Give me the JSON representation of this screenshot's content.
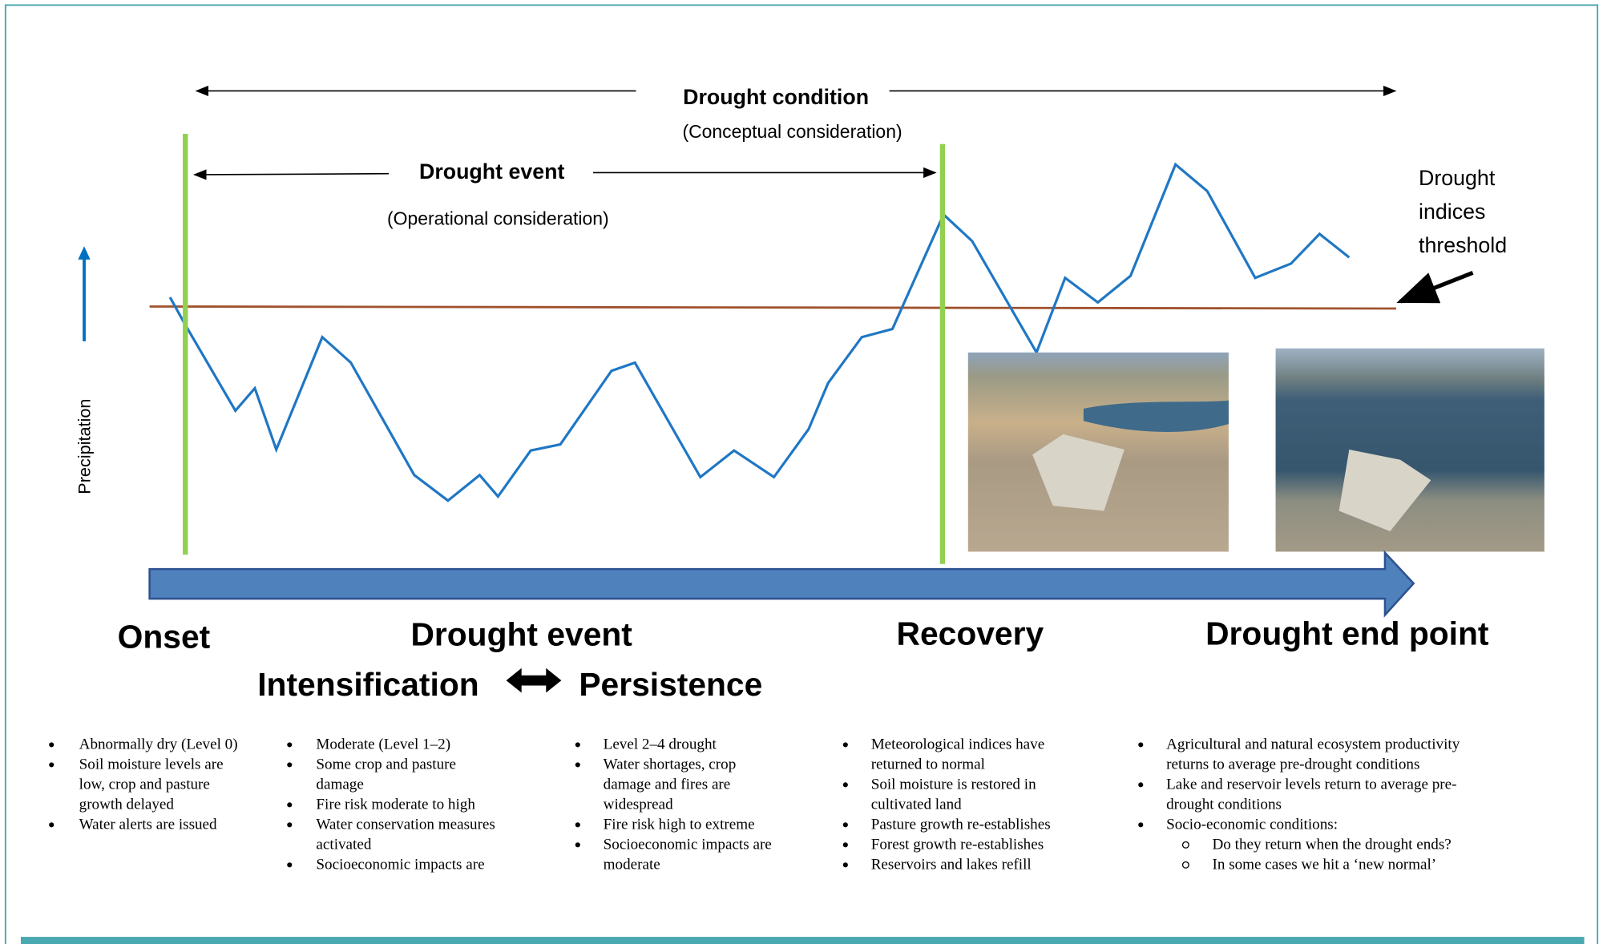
{
  "header": {
    "condition": {
      "title": "Drought condition",
      "subtitle": "(Conceptual consideration)"
    },
    "event": {
      "title": "Drought event",
      "subtitle": "(Operational consideration)"
    }
  },
  "threshold_label": [
    "Drought",
    "indices",
    "threshold"
  ],
  "y_axis_label": "Precipitation",
  "phases": {
    "onset": "Onset",
    "event": "Drought event",
    "recovery": "Recovery",
    "end": "Drought end point",
    "intensification": "Intensification",
    "persistence": "Persistence"
  },
  "columns": [
    {
      "items": [
        [
          "Abnormally dry (Level 0)"
        ],
        [
          "Soil moisture levels are",
          "low, crop and pasture",
          "growth delayed"
        ],
        [
          "Water alerts are issued"
        ]
      ]
    },
    {
      "items": [
        [
          "Moderate (Level 1–2)"
        ],
        [
          "Some crop and pasture",
          "damage"
        ],
        [
          "Fire risk moderate to high"
        ],
        [
          "Water conservation measures",
          "activated"
        ],
        [
          "Socioeconomic impacts are"
        ]
      ]
    },
    {
      "items": [
        [
          "Level 2–4 drought"
        ],
        [
          "Water shortages, crop",
          "damage and fires are",
          "widespread"
        ],
        [
          "Fire risk high to extreme"
        ],
        [
          "Socioeconomic impacts are",
          "moderate"
        ]
      ]
    },
    {
      "items": [
        [
          "Meteorological indices have",
          "returned to normal"
        ],
        [
          "Soil moisture is restored in",
          "cultivated land"
        ],
        [
          "Pasture growth re-establishes"
        ],
        [
          "Forest growth re-establishes"
        ],
        [
          "Reservoirs and lakes refill"
        ]
      ]
    },
    {
      "items": [
        [
          "Agricultural and natural ecosystem productivity",
          "returns to average pre-drought conditions"
        ],
        [
          "Lake and reservoir levels return to average pre-",
          "drought conditions"
        ],
        [
          "Socio-economic conditions:"
        ]
      ],
      "subitems": [
        [
          "Do they return when the drought ends?"
        ],
        [
          "In some cases we hit a ‘new normal’"
        ]
      ]
    }
  ]
}
